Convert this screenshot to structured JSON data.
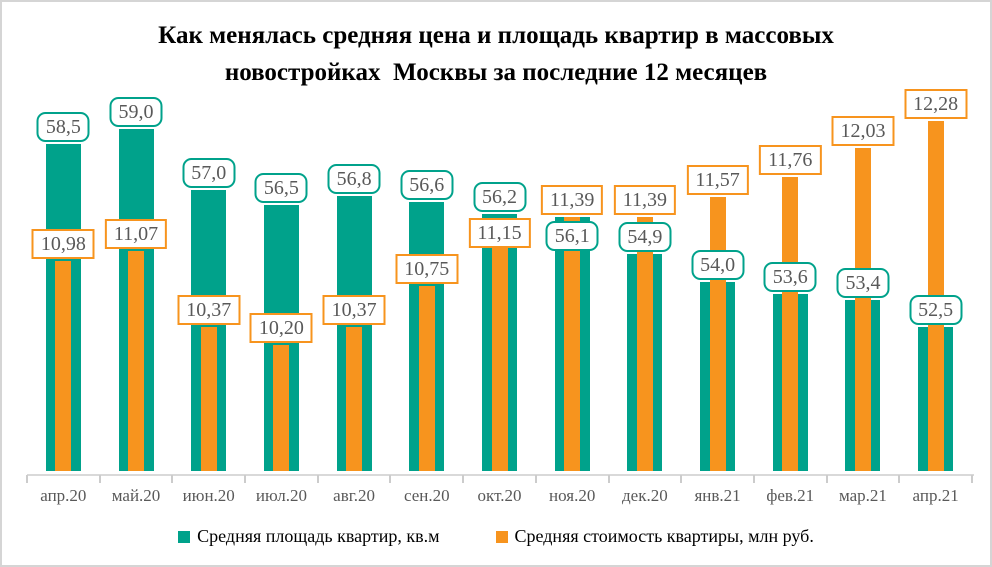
{
  "title": {
    "line1": "Как менялась средняя цена и площадь квартир в массовых",
    "line2": "новостройках  Москвы за последние 12 месяцев"
  },
  "chart_data": {
    "type": "bar",
    "subtype": "overlapped-dual-axis",
    "title": "Как менялась средняя цена и площадь квартир в массовых новостройках Москвы за последние 12 месяцев",
    "categories": [
      "апр.20",
      "май.20",
      "июн.20",
      "июл.20",
      "авг.20",
      "сен.20",
      "окт.20",
      "ноя.20",
      "дек.20",
      "янв.21",
      "фев.21",
      "мар.21",
      "апр.21"
    ],
    "series": [
      {
        "key": "area",
        "name": "Средняя площадь квартир, кв.м",
        "color": "#00A28B",
        "axis": "primary",
        "decimals": 1,
        "label_box": "rounded",
        "values": [
          58.5,
          59.0,
          57.0,
          56.5,
          56.8,
          56.6,
          56.2,
          56.1,
          54.9,
          54.0,
          53.6,
          53.4,
          52.5
        ]
      },
      {
        "key": "price",
        "name": "Средняя стоимость квартиры, млн руб.",
        "color": "#F7941E",
        "axis": "secondary",
        "decimals": 2,
        "label_box": "square",
        "values": [
          10.98,
          11.07,
          10.37,
          10.2,
          10.37,
          10.75,
          11.15,
          11.39,
          11.39,
          11.57,
          11.76,
          12.03,
          12.28
        ]
      }
    ],
    "ylim_primary": [
      47.8,
      60.5
    ],
    "ylim_secondary": [
      9.03,
      12.63
    ],
    "grid": false,
    "legend_position": "bottom",
    "value_label_decimal_separator": ","
  },
  "style": {
    "area_color": "#00A28B",
    "price_color": "#F7941E",
    "label_text_color": "#595959",
    "axis_line_color": "#d9d9d9",
    "frame_border_color": "#d5d5d5",
    "title_color": "#000000"
  }
}
